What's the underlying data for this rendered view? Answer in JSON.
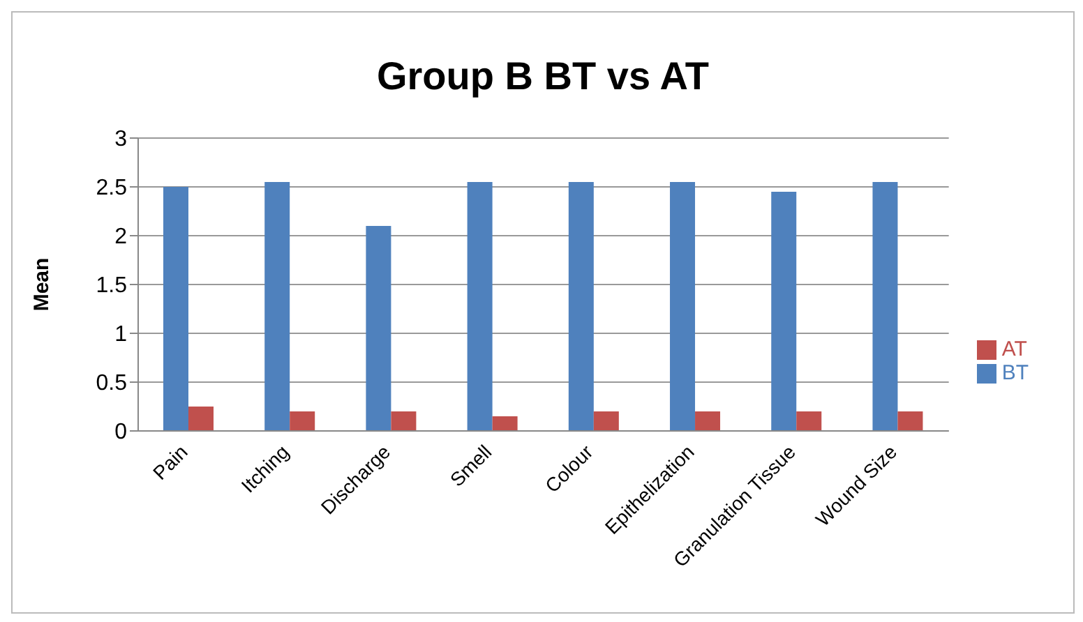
{
  "chart_data": {
    "type": "bar",
    "title": "Group B BT vs AT",
    "ylabel": "Mean",
    "categories": [
      "Pain",
      "Itching",
      "Discharge",
      "Smell",
      "Colour",
      "Epithelization",
      "Granulation Tissue",
      "Wound Size"
    ],
    "series": [
      {
        "name": "BT",
        "color": "#4f81bd",
        "values": [
          2.5,
          2.55,
          2.1,
          2.55,
          2.55,
          2.55,
          2.45,
          2.55
        ]
      },
      {
        "name": "AT",
        "color": "#c0504d",
        "values": [
          0.25,
          0.2,
          0.2,
          0.15,
          0.2,
          0.2,
          0.2,
          0.2
        ]
      }
    ],
    "ylim": [
      0,
      3
    ],
    "yticks": [
      0,
      0.5,
      1,
      1.5,
      2,
      2.5,
      3
    ],
    "grid": "y",
    "legend": "right"
  }
}
